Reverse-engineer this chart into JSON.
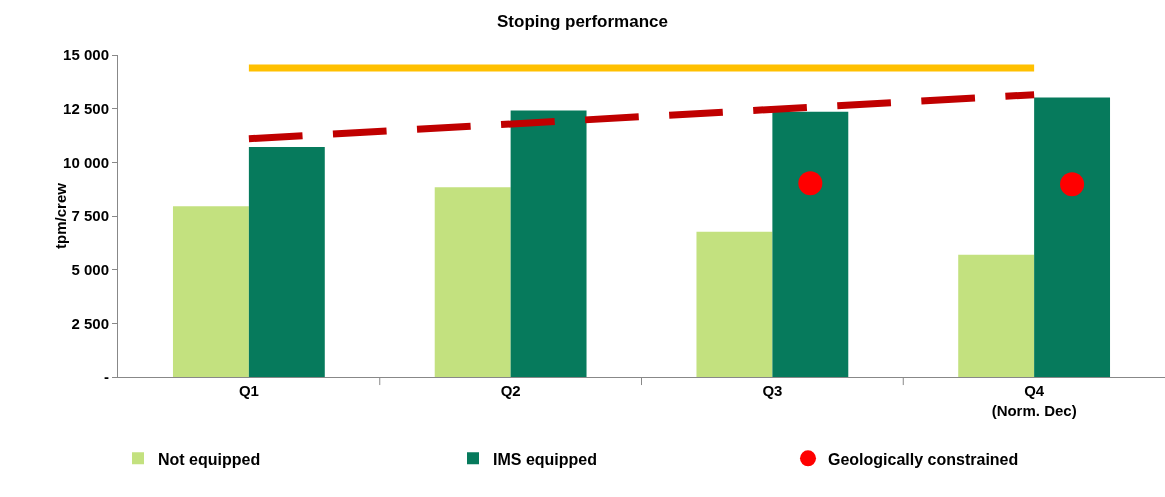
{
  "chart_data": {
    "type": "bar",
    "title": "Stoping performance",
    "ylabel": "tpm/crew",
    "categories": [
      "Q1",
      "Q2",
      "Q3",
      "Q4\n(Norm. Dec)"
    ],
    "series": [
      {
        "name": "Not equipped",
        "color": "#c3e17f",
        "values": [
          7950,
          8840,
          6770,
          5690
        ]
      },
      {
        "name": "IMS equipped",
        "color": "#067a5c",
        "values": [
          10720,
          12410,
          12360,
          13020
        ]
      },
      {
        "name": "Geologically constrained",
        "type": "scatter",
        "marker": "circle",
        "color": "#ff0000",
        "x": [
          "Q3",
          "Q4\n(Norm. Dec)"
        ],
        "values": [
          9030,
          8980
        ]
      },
      {
        "type": "line",
        "color": "#ffc000",
        "line_style": "solid",
        "x": [
          "Q1",
          "Q4\n(Norm. Dec)"
        ],
        "values": [
          14400,
          14400
        ]
      },
      {
        "type": "line",
        "color": "#c00000",
        "line_style": "dashed",
        "x": [
          "Q1",
          "Q4\n(Norm. Dec)"
        ],
        "values": [
          11100,
          13150
        ]
      }
    ],
    "ylim": [
      0,
      15000
    ],
    "yticks": [
      {
        "value": 0,
        "label": "-"
      },
      {
        "value": 2500,
        "label": "2 500"
      },
      {
        "value": 5000,
        "label": "5 000"
      },
      {
        "value": 7500,
        "label": "7 500"
      },
      {
        "value": 10000,
        "label": "10 000"
      },
      {
        "value": 12500,
        "label": "12 500"
      },
      {
        "value": 15000,
        "label": "15 000"
      }
    ],
    "grid": false,
    "legend": "bottom"
  }
}
